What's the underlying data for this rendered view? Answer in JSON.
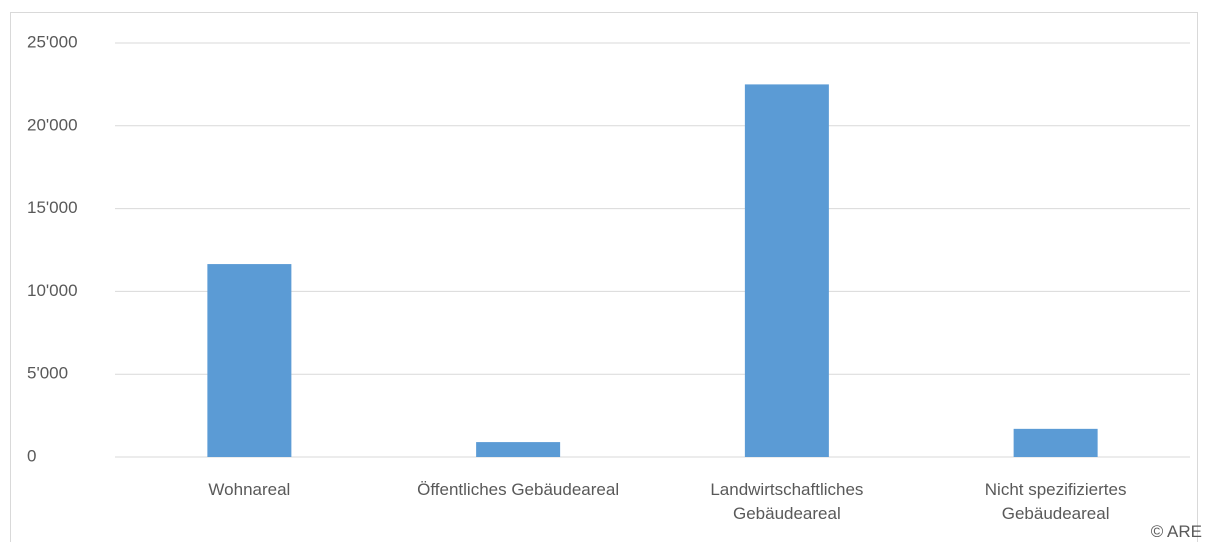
{
  "chart_data": {
    "type": "bar",
    "categories": [
      "Wohnareal",
      "Öffentliches Gebäudeareal",
      "Landwirtschaftliches Gebäudeareal",
      "Nicht spezifiziertes Gebäudeareal"
    ],
    "values": [
      11650,
      900,
      22500,
      1700
    ],
    "color": "#5b9bd5",
    "ylim": [
      0,
      25000
    ],
    "yticks": [
      0,
      {
        "value": 5000,
        "label": "5'000"
      },
      {
        "value": 10000,
        "label": "10'000"
      },
      {
        "value": 15000,
        "label": "15'000"
      },
      {
        "value": 20000,
        "label": "20'000"
      },
      {
        "value": 25000,
        "label": "25'000"
      }
    ],
    "grid": true,
    "annotation": "© ARE"
  }
}
